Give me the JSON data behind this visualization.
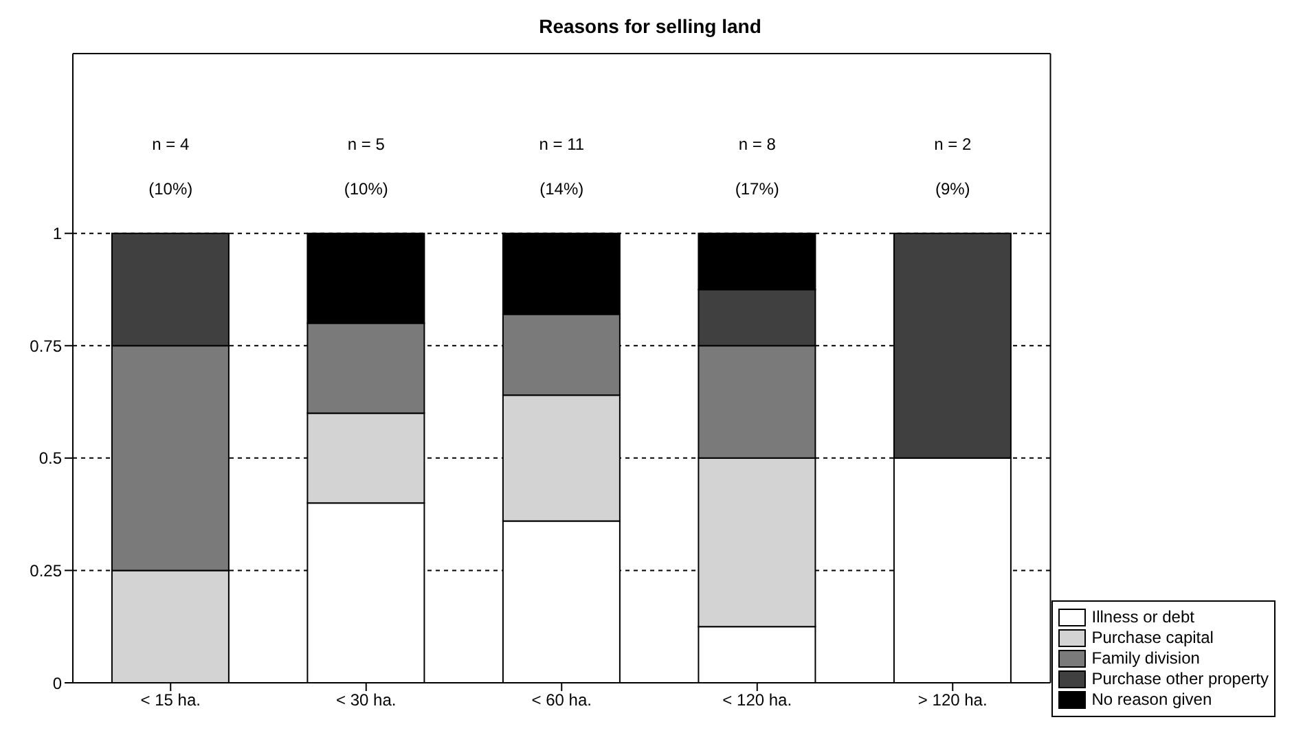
{
  "chart_data": {
    "type": "bar",
    "title": "Reasons for selling land",
    "categories": [
      "< 15 ha.",
      "< 30 ha.",
      "< 60 ha.",
      "< 120 ha.",
      "> 120 ha."
    ],
    "stacked": true,
    "series": [
      {
        "name": "Illness or debt",
        "color": "#ffffff",
        "values": [
          0,
          0.4,
          0.36,
          0.125,
          0.5
        ]
      },
      {
        "name": "Purchase capital",
        "color": "#d3d3d3",
        "values": [
          0.25,
          0.2,
          0.28,
          0.375,
          0
        ]
      },
      {
        "name": "Family division",
        "color": "#7a7a7a",
        "values": [
          0.5,
          0.2,
          0.18,
          0.25,
          0
        ]
      },
      {
        "name": "Purchase other property",
        "color": "#404040",
        "values": [
          0.25,
          0,
          0,
          0.125,
          0.5
        ]
      },
      {
        "name": "No reason given",
        "color": "#000000",
        "values": [
          0,
          0.2,
          0.18,
          0.125,
          0
        ]
      }
    ],
    "ylim": [
      0,
      1.4
    ],
    "yticks": [
      0,
      0.25,
      0.5,
      0.75,
      1
    ],
    "grid": "y",
    "legend": "right",
    "annotations": [
      "n = 4",
      "(10%)",
      "n = 5",
      "(10%)",
      "n = 11",
      "(14%)",
      "n = 8",
      "(17%)",
      "n = 2",
      "(9%)"
    ]
  }
}
